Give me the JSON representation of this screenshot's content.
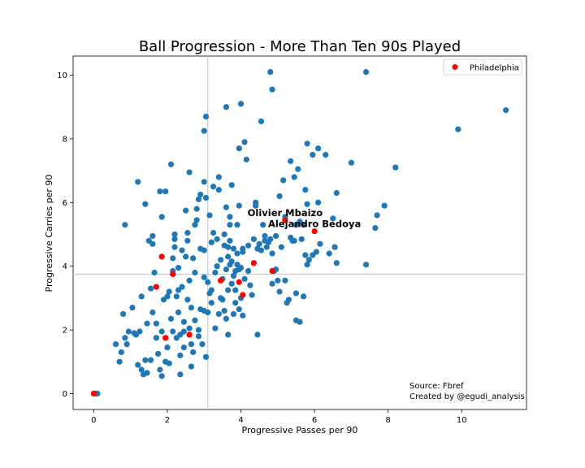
{
  "chart_data": {
    "type": "scatter",
    "title": "Ball Progression - More Than Ten 90s Played",
    "xlabel": "Progressive Passes per 90",
    "ylabel": "Progressive Carries per 90",
    "xlim": [
      -0.56,
      11.76
    ],
    "ylim": [
      -0.5,
      10.6
    ],
    "xticks": [
      "0",
      "2",
      "4",
      "6",
      "8",
      "10"
    ],
    "yticks": [
      "0",
      "2",
      "4",
      "6",
      "8",
      "10"
    ],
    "grid": false,
    "legend_position": "top-right",
    "reference_lines": {
      "x_median": 3.1,
      "y_median": 3.75
    },
    "colors": {
      "league": "#1f77b4",
      "highlight": "#ff0000",
      "reference": "#c8c8c8"
    },
    "series": [
      {
        "name": "",
        "color": "#1f77b4",
        "points": [
          [
            0.05,
            0.0
          ],
          [
            0.1,
            0.0
          ],
          [
            0.6,
            1.55
          ],
          [
            0.7,
            1.0
          ],
          [
            0.75,
            1.3
          ],
          [
            0.8,
            2.5
          ],
          [
            0.85,
            1.75
          ],
          [
            0.85,
            5.3
          ],
          [
            0.9,
            1.55
          ],
          [
            0.95,
            1.95
          ],
          [
            1.05,
            2.7
          ],
          [
            1.1,
            1.9
          ],
          [
            1.15,
            1.85
          ],
          [
            1.2,
            6.65
          ],
          [
            1.2,
            0.9
          ],
          [
            1.25,
            1.95
          ],
          [
            1.3,
            0.75
          ],
          [
            1.3,
            3.05
          ],
          [
            1.35,
            0.6
          ],
          [
            1.4,
            1.05
          ],
          [
            1.4,
            5.95
          ],
          [
            1.45,
            0.65
          ],
          [
            1.45,
            2.2
          ],
          [
            1.5,
            4.8
          ],
          [
            1.55,
            3.3
          ],
          [
            1.55,
            1.05
          ],
          [
            1.6,
            2.55
          ],
          [
            1.6,
            4.7
          ],
          [
            1.6,
            4.95
          ],
          [
            1.65,
            3.8
          ],
          [
            1.7,
            2.2
          ],
          [
            1.7,
            1.75
          ],
          [
            1.75,
            1.25
          ],
          [
            1.8,
            0.75
          ],
          [
            1.8,
            6.35
          ],
          [
            1.85,
            5.55
          ],
          [
            1.85,
            0.55
          ],
          [
            1.85,
            1.95
          ],
          [
            1.9,
            2.95
          ],
          [
            1.95,
            1.0
          ],
          [
            1.95,
            6.35
          ],
          [
            2.0,
            3.05
          ],
          [
            2.0,
            1.45
          ],
          [
            2.05,
            3.2
          ],
          [
            2.05,
            0.95
          ],
          [
            2.1,
            7.2
          ],
          [
            2.1,
            2.35
          ],
          [
            2.15,
            1.95
          ],
          [
            2.15,
            3.85
          ],
          [
            2.15,
            4.25
          ],
          [
            2.2,
            4.6
          ],
          [
            2.2,
            5.0
          ],
          [
            2.2,
            4.85
          ],
          [
            2.25,
            1.75
          ],
          [
            2.25,
            3.05
          ],
          [
            2.3,
            3.95
          ],
          [
            2.3,
            2.55
          ],
          [
            2.3,
            3.25
          ],
          [
            2.35,
            1.2
          ],
          [
            2.35,
            1.85
          ],
          [
            2.35,
            0.6
          ],
          [
            2.4,
            3.35
          ],
          [
            2.4,
            4.5
          ],
          [
            2.45,
            2.25
          ],
          [
            2.45,
            1.45
          ],
          [
            2.45,
            1.95
          ],
          [
            2.5,
            5.75
          ],
          [
            2.5,
            4.3
          ],
          [
            2.55,
            2.95
          ],
          [
            2.55,
            4.8
          ],
          [
            2.55,
            5.05
          ],
          [
            2.6,
            6.95
          ],
          [
            2.6,
            3.55
          ],
          [
            2.6,
            2.05
          ],
          [
            2.65,
            0.85
          ],
          [
            2.65,
            2.7
          ],
          [
            2.65,
            1.55
          ],
          [
            2.7,
            4.25
          ],
          [
            2.7,
            1.3
          ],
          [
            2.75,
            5.3
          ],
          [
            2.75,
            3.8
          ],
          [
            2.75,
            2.3
          ],
          [
            2.8,
            5.8
          ],
          [
            2.8,
            5.45
          ],
          [
            2.85,
            1.8
          ],
          [
            2.85,
            2.0
          ],
          [
            2.85,
            6.1
          ],
          [
            2.9,
            4.55
          ],
          [
            2.9,
            2.65
          ],
          [
            2.9,
            6.25
          ],
          [
            2.95,
            1.55
          ],
          [
            3.0,
            8.25
          ],
          [
            3.0,
            6.65
          ],
          [
            3.0,
            4.5
          ],
          [
            3.0,
            3.65
          ],
          [
            3.0,
            2.6
          ],
          [
            3.05,
            6.15
          ],
          [
            3.05,
            8.7
          ],
          [
            3.05,
            1.15
          ],
          [
            3.1,
            2.55
          ],
          [
            3.1,
            3.5
          ],
          [
            3.15,
            5.6
          ],
          [
            3.15,
            3.15
          ],
          [
            3.2,
            3.25
          ],
          [
            3.2,
            4.75
          ],
          [
            3.2,
            2.85
          ],
          [
            3.25,
            6.5
          ],
          [
            3.25,
            5.05
          ],
          [
            3.3,
            3.8
          ],
          [
            3.3,
            2.05
          ],
          [
            3.35,
            4.85
          ],
          [
            3.35,
            4.0
          ],
          [
            3.4,
            6.8
          ],
          [
            3.4,
            6.4
          ],
          [
            3.4,
            2.5
          ],
          [
            3.45,
            4.2
          ],
          [
            3.45,
            3.0
          ],
          [
            3.5,
            2.95
          ],
          [
            3.5,
            3.6
          ],
          [
            3.55,
            4.65
          ],
          [
            3.55,
            5.0
          ],
          [
            3.55,
            2.6
          ],
          [
            3.6,
            5.85
          ],
          [
            3.6,
            3.9
          ],
          [
            3.6,
            2.35
          ],
          [
            3.6,
            9.0
          ],
          [
            3.65,
            4.6
          ],
          [
            3.65,
            4.3
          ],
          [
            3.65,
            3.25
          ],
          [
            3.65,
            1.85
          ],
          [
            3.7,
            5.3
          ],
          [
            3.7,
            4.8
          ],
          [
            3.7,
            4.05
          ],
          [
            3.7,
            5.55
          ],
          [
            3.75,
            6.55
          ],
          [
            3.75,
            3.45
          ],
          [
            3.75,
            4.15
          ],
          [
            3.8,
            4.55
          ],
          [
            3.8,
            3.7
          ],
          [
            3.8,
            2.5
          ],
          [
            3.85,
            3.25
          ],
          [
            3.85,
            3.85
          ],
          [
            3.85,
            2.85
          ],
          [
            3.9,
            4.4
          ],
          [
            3.9,
            5.3
          ],
          [
            3.9,
            4.05
          ],
          [
            3.95,
            3.9
          ],
          [
            3.95,
            2.65
          ],
          [
            3.95,
            7.7
          ],
          [
            3.95,
            5.9
          ],
          [
            4.0,
            9.1
          ],
          [
            4.0,
            3.95
          ],
          [
            4.0,
            3.0
          ],
          [
            4.05,
            4.45
          ],
          [
            4.05,
            4.55
          ],
          [
            4.05,
            2.45
          ],
          [
            4.1,
            7.9
          ],
          [
            4.1,
            3.6
          ],
          [
            4.15,
            7.35
          ],
          [
            4.2,
            3.85
          ],
          [
            4.2,
            4.65
          ],
          [
            4.25,
            3.4
          ],
          [
            4.3,
            3.1
          ],
          [
            4.35,
            4.85
          ],
          [
            4.4,
            6.0
          ],
          [
            4.4,
            5.9
          ],
          [
            4.45,
            4.55
          ],
          [
            4.45,
            1.85
          ],
          [
            4.5,
            4.7
          ],
          [
            4.55,
            8.55
          ],
          [
            4.55,
            4.5
          ],
          [
            4.6,
            5.3
          ],
          [
            4.65,
            4.95
          ],
          [
            4.65,
            4.8
          ],
          [
            4.7,
            4.6
          ],
          [
            4.75,
            4.75
          ],
          [
            4.8,
            4.85
          ],
          [
            4.8,
            10.1
          ],
          [
            4.85,
            9.55
          ],
          [
            4.85,
            3.45
          ],
          [
            4.85,
            4.4
          ],
          [
            4.9,
            3.85
          ],
          [
            4.95,
            4.95
          ],
          [
            4.95,
            3.9
          ],
          [
            5.0,
            3.55
          ],
          [
            5.05,
            6.2
          ],
          [
            5.05,
            3.2
          ],
          [
            5.1,
            4.6
          ],
          [
            5.15,
            6.7
          ],
          [
            5.2,
            5.55
          ],
          [
            5.2,
            3.55
          ],
          [
            5.25,
            2.85
          ],
          [
            5.3,
            2.95
          ],
          [
            5.35,
            4.9
          ],
          [
            5.35,
            7.3
          ],
          [
            5.4,
            4.8
          ],
          [
            5.45,
            4.8
          ],
          [
            5.45,
            6.8
          ],
          [
            5.5,
            5.3
          ],
          [
            5.5,
            3.15
          ],
          [
            5.5,
            2.3
          ],
          [
            5.55,
            7.05
          ],
          [
            5.6,
            5.4
          ],
          [
            5.6,
            2.25
          ],
          [
            5.65,
            4.85
          ],
          [
            5.7,
            5.3
          ],
          [
            5.7,
            3.05
          ],
          [
            5.75,
            6.4
          ],
          [
            5.75,
            4.35
          ],
          [
            5.8,
            7.85
          ],
          [
            5.8,
            5.95
          ],
          [
            5.8,
            4.05
          ],
          [
            5.85,
            4.2
          ],
          [
            5.95,
            7.5
          ],
          [
            5.95,
            4.35
          ],
          [
            6.05,
            4.45
          ],
          [
            6.1,
            6.0
          ],
          [
            6.1,
            7.7
          ],
          [
            6.15,
            4.7
          ],
          [
            6.3,
            7.5
          ],
          [
            6.4,
            4.4
          ],
          [
            6.5,
            5.5
          ],
          [
            6.55,
            4.6
          ],
          [
            6.6,
            6.3
          ],
          [
            6.6,
            4.1
          ],
          [
            7.0,
            7.25
          ],
          [
            7.4,
            4.05
          ],
          [
            7.4,
            10.1
          ],
          [
            7.65,
            5.2
          ],
          [
            7.7,
            5.6
          ],
          [
            7.9,
            5.9
          ],
          [
            8.2,
            7.1
          ],
          [
            9.9,
            8.3
          ],
          [
            11.2,
            8.9
          ]
        ]
      },
      {
        "name": "Philadelphia",
        "color": "#ff0000",
        "points": [
          [
            0.0,
            0.0
          ],
          [
            1.7,
            3.35
          ],
          [
            1.85,
            4.3
          ],
          [
            1.95,
            1.75
          ],
          [
            2.15,
            3.75
          ],
          [
            2.6,
            1.85
          ],
          [
            3.45,
            3.55
          ],
          [
            3.95,
            3.5
          ],
          [
            4.05,
            3.1
          ],
          [
            4.35,
            4.1
          ],
          [
            4.85,
            3.85
          ],
          [
            5.2,
            5.45
          ],
          [
            6.0,
            5.1
          ]
        ]
      }
    ],
    "annotations": [
      {
        "text": "Olivier Mbaizo",
        "x": 5.2,
        "y": 5.45
      },
      {
        "text": "Alejandro Bedoya",
        "x": 6.0,
        "y": 5.1
      }
    ],
    "footnote": [
      "Source: Fbref",
      "Created by @egudi_analysis"
    ]
  }
}
